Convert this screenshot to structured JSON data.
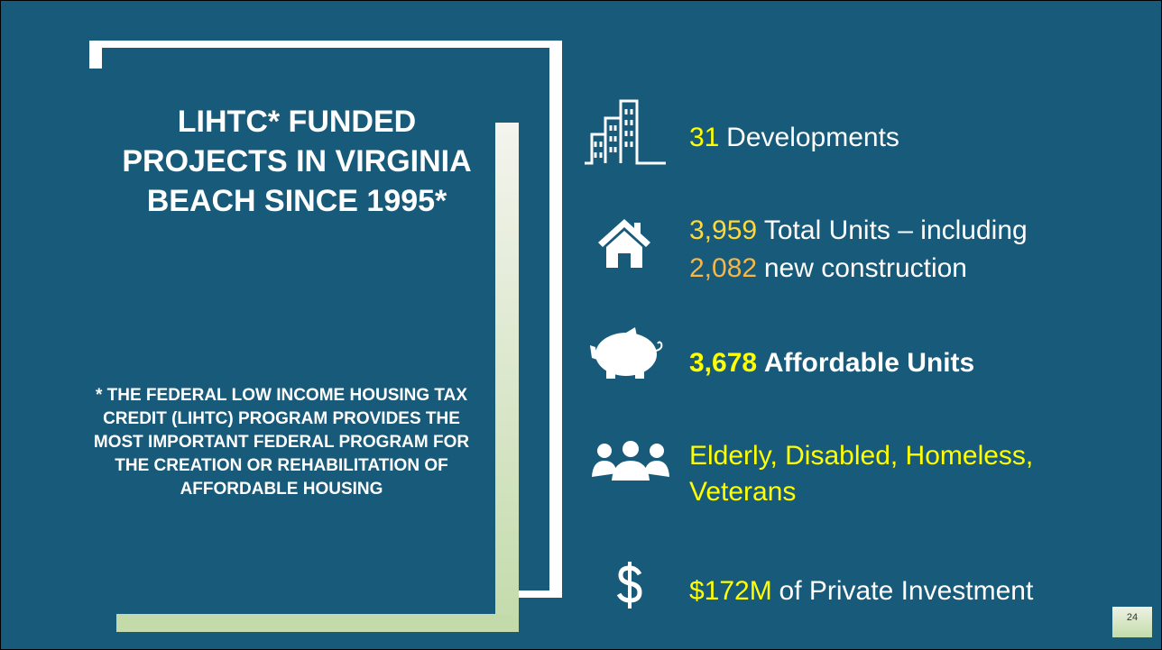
{
  "title": "LIHTC* FUNDED PROJECTS IN VIRGINIA BEACH SINCE 1995*",
  "footnote": "* THE FEDERAL LOW INCOME HOUSING TAX CREDIT (LIHTC) PROGRAM PROVIDES THE MOST IMPORTANT FEDERAL PROGRAM FOR THE CREATION OR REHABILITATION OF AFFORDABLE HOUSING",
  "items": [
    {
      "lines": [
        {
          "highlight": "31",
          "text": "Developments"
        }
      ]
    },
    {
      "lines": [
        {
          "highlight": "3,959",
          "text": "Total Units – including"
        },
        {
          "highlight": "2,082",
          "text": "new construction"
        }
      ]
    },
    {
      "lines": [
        {
          "highlight": "3,678",
          "text": "Affordable Units"
        }
      ]
    },
    {
      "lines": [
        {
          "highlight": "Elderly, Disabled, Homeless,"
        },
        {
          "highlight": "Veterans"
        }
      ]
    },
    {
      "lines": [
        {
          "highlight": "$172M",
          "text": "of Private Investment"
        }
      ]
    }
  ],
  "page_number": "24"
}
